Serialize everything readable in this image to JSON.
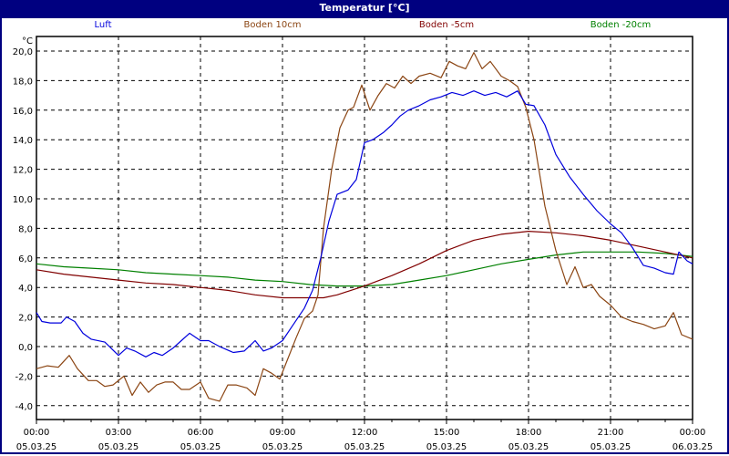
{
  "window": {
    "title": "Temperatur [°C]",
    "title_bg": "#000080"
  },
  "legend": [
    {
      "label": "Luft",
      "color": "#0000dd"
    },
    {
      "label": "Boden 10cm",
      "color": "#8b4513"
    },
    {
      "label": "Boden -5cm",
      "color": "#800000"
    },
    {
      "label": "Boden -20cm",
      "color": "#008000"
    }
  ],
  "chart_data": {
    "type": "line",
    "title": "Temperatur [°C]",
    "xlabel": "",
    "ylabel": "°C",
    "ylim": [
      -4.8,
      21.0
    ],
    "xlim_hours": [
      0,
      24
    ],
    "grid": true,
    "legend_position": "top",
    "y_ticks": [
      "20,0",
      "18,0",
      "16,0",
      "14,0",
      "12,0",
      "10,0",
      "8,0",
      "6,0",
      "4,0",
      "2,0",
      "0,0",
      "-2,0",
      "-4,0"
    ],
    "x_ticks": [
      {
        "time": "00:00",
        "date": "05.03.25"
      },
      {
        "time": "03:00",
        "date": "05.03.25"
      },
      {
        "time": "06:00",
        "date": "05.03.25"
      },
      {
        "time": "09:00",
        "date": "05.03.25"
      },
      {
        "time": "12:00",
        "date": "05.03.25"
      },
      {
        "time": "15:00",
        "date": "05.03.25"
      },
      {
        "time": "18:00",
        "date": "05.03.25"
      },
      {
        "time": "21:00",
        "date": "05.03.25"
      },
      {
        "time": "00:00",
        "date": "06.03.25"
      }
    ],
    "series": [
      {
        "name": "Luft",
        "color": "#0000dd",
        "x": [
          0,
          0.2,
          0.5,
          0.9,
          1.1,
          1.4,
          1.7,
          2.0,
          2.5,
          3.0,
          3.3,
          3.6,
          4.0,
          4.3,
          4.6,
          5.0,
          5.3,
          5.6,
          6.0,
          6.3,
          6.7,
          7.2,
          7.6,
          8.0,
          8.3,
          8.6,
          9.0,
          9.4,
          9.8,
          10.1,
          10.4,
          10.7,
          11.0,
          11.4,
          11.7,
          12.0,
          12.3,
          12.7,
          13.0,
          13.3,
          13.6,
          14.0,
          14.4,
          14.8,
          15.2,
          15.6,
          16.0,
          16.4,
          16.8,
          17.2,
          17.6,
          17.9,
          18.2,
          18.6,
          19.0,
          19.5,
          20.0,
          20.5,
          21.0,
          21.4,
          21.8,
          22.2,
          22.6,
          23.0,
          23.3,
          23.5,
          23.8,
          24.0
        ],
        "values": [
          2.3,
          1.7,
          1.6,
          1.6,
          2.0,
          1.7,
          0.9,
          0.5,
          0.3,
          -0.6,
          -0.1,
          -0.3,
          -0.7,
          -0.4,
          -0.6,
          -0.1,
          0.4,
          0.9,
          0.4,
          0.4,
          0.0,
          -0.4,
          -0.3,
          0.4,
          -0.3,
          -0.1,
          0.4,
          1.5,
          2.6,
          3.8,
          6.0,
          8.5,
          10.3,
          10.6,
          11.3,
          13.8,
          14.0,
          14.5,
          15.0,
          15.6,
          16.0,
          16.3,
          16.7,
          16.9,
          17.2,
          17.0,
          17.3,
          17.0,
          17.2,
          16.9,
          17.3,
          16.4,
          16.3,
          15.0,
          13.0,
          11.5,
          10.3,
          9.2,
          8.3,
          7.7,
          6.7,
          5.5,
          5.3,
          5.0,
          4.9,
          6.4,
          5.8,
          5.6
        ]
      },
      {
        "name": "Boden 10cm",
        "color": "#8b4513",
        "x": [
          0,
          0.4,
          0.8,
          1.2,
          1.5,
          1.9,
          2.2,
          2.5,
          2.8,
          3.0,
          3.2,
          3.5,
          3.8,
          4.1,
          4.4,
          4.7,
          5.0,
          5.3,
          5.6,
          6.0,
          6.3,
          6.7,
          7.0,
          7.3,
          7.7,
          8.0,
          8.3,
          8.6,
          8.9,
          9.2,
          9.5,
          9.8,
          10.1,
          10.3,
          10.5,
          10.8,
          11.1,
          11.4,
          11.6,
          11.9,
          12.2,
          12.5,
          12.8,
          13.1,
          13.4,
          13.7,
          14.0,
          14.4,
          14.8,
          15.1,
          15.4,
          15.7,
          16.0,
          16.3,
          16.6,
          17.0,
          17.3,
          17.6,
          17.9,
          18.2,
          18.6,
          19.0,
          19.4,
          19.7,
          20.0,
          20.3,
          20.6,
          21.0,
          21.4,
          21.8,
          22.2,
          22.6,
          23.0,
          23.3,
          23.6,
          24.0
        ],
        "values": [
          -1.5,
          -1.3,
          -1.4,
          -0.6,
          -1.5,
          -2.3,
          -2.3,
          -2.7,
          -2.6,
          -2.3,
          -2.0,
          -3.3,
          -2.4,
          -3.1,
          -2.6,
          -2.4,
          -2.4,
          -2.9,
          -2.9,
          -2.4,
          -3.5,
          -3.7,
          -2.6,
          -2.6,
          -2.8,
          -3.3,
          -1.5,
          -1.8,
          -2.2,
          -0.8,
          0.6,
          1.9,
          2.4,
          3.5,
          8.0,
          12.0,
          14.8,
          16.0,
          16.2,
          17.7,
          16.0,
          17.0,
          17.8,
          17.5,
          18.3,
          17.8,
          18.3,
          18.5,
          18.2,
          19.3,
          19.0,
          18.8,
          19.9,
          18.8,
          19.3,
          18.3,
          18.0,
          17.6,
          16.2,
          14.0,
          9.5,
          6.5,
          4.2,
          5.4,
          4.0,
          4.2,
          3.4,
          2.8,
          2.0,
          1.7,
          1.5,
          1.2,
          1.4,
          2.3,
          0.8,
          0.5
        ]
      },
      {
        "name": "Boden -5cm",
        "color": "#800000",
        "x": [
          0,
          1,
          2,
          3,
          4,
          5,
          6,
          7,
          8,
          9,
          10,
          10.5,
          11,
          11.5,
          12,
          13,
          14,
          15,
          16,
          17,
          18,
          19,
          20,
          21,
          22,
          23,
          24
        ],
        "values": [
          5.2,
          4.9,
          4.7,
          4.5,
          4.3,
          4.2,
          4.0,
          3.8,
          3.5,
          3.3,
          3.3,
          3.3,
          3.5,
          3.8,
          4.1,
          4.8,
          5.6,
          6.5,
          7.2,
          7.6,
          7.8,
          7.7,
          7.5,
          7.2,
          6.8,
          6.4,
          6.0
        ]
      },
      {
        "name": "Boden -20cm",
        "color": "#008000",
        "x": [
          0,
          1,
          2,
          3,
          4,
          5,
          6,
          7,
          8,
          9,
          10,
          11,
          12,
          13,
          14,
          15,
          16,
          17,
          18,
          19,
          20,
          21,
          22,
          23,
          24
        ],
        "values": [
          5.6,
          5.4,
          5.3,
          5.2,
          5.0,
          4.9,
          4.8,
          4.7,
          4.5,
          4.4,
          4.2,
          4.1,
          4.1,
          4.2,
          4.5,
          4.8,
          5.2,
          5.6,
          5.9,
          6.2,
          6.4,
          6.4,
          6.4,
          6.3,
          6.1
        ]
      }
    ]
  }
}
